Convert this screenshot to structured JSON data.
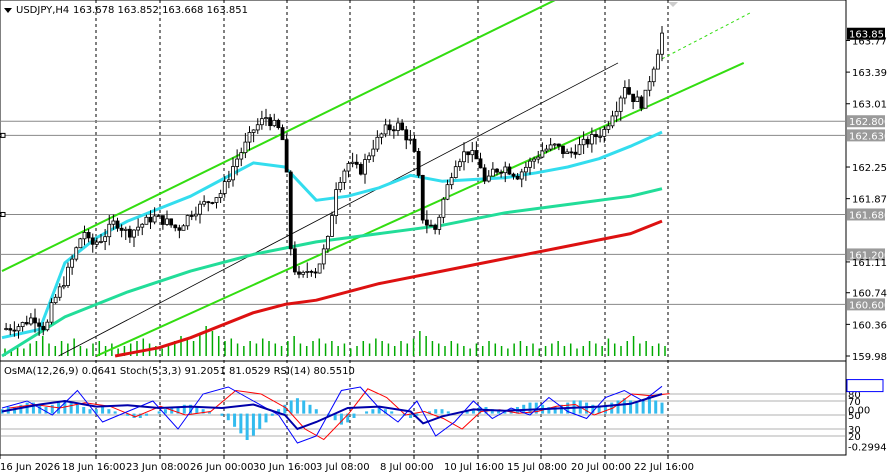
{
  "header": {
    "symbol": "USDJPY,H4",
    "ohlc": "163.678 163.852 163.668 163.851"
  },
  "osc_header": {
    "text": "OsMA(12,26,9) 0.0641 Stoch(5,3,3) 91.2051 81.0529 RSI(14) 80.5510"
  },
  "colors": {
    "background": "#ffffff",
    "ma_fast": "#33ddee",
    "ma_mid": "#22dd99",
    "ma_slow": "#dd1111",
    "channel": "#33dd11",
    "candles": "#000000",
    "volume": "#00aa00",
    "osma": "#33bbee",
    "stoch_main": "#0000ff",
    "stoch_signal": "#ff0000",
    "rsi": "#0000aa",
    "price_tag": "#000000"
  },
  "chart_data": [
    {
      "type": "candlestick",
      "symbol": "USDJPY",
      "timeframe": "H4",
      "ylim": [
        159.98,
        164.04
      ],
      "price_ticks": [
        "163.770",
        "163.390",
        "163.010",
        "162.250",
        "161.870",
        "161.110",
        "160.740",
        "160.360",
        "159.980"
      ],
      "price_ticks_values": [
        163.77,
        163.39,
        163.01,
        162.25,
        161.87,
        161.11,
        160.74,
        160.36,
        159.98
      ],
      "current_price": "163.851",
      "levels": [
        {
          "label": "162.800",
          "value": 162.8
        },
        {
          "label": "162.630",
          "value": 162.63
        },
        {
          "label": "161.680",
          "value": 161.68
        },
        {
          "label": "161.200",
          "value": 161.2
        },
        {
          "label": "160.600",
          "value": 160.6
        }
      ],
      "x_labels": [
        "16 Jun 2026",
        "18 Jun 16:00",
        "23 Jun 08:00",
        "26 Jun 00:00",
        "30 Jun 16:00",
        "3 Jul 08:00",
        "8 Jul 00:00",
        "10 Jul 16:00",
        "15 Jul 08:00",
        "20 Jul 00:00",
        "22 Jul 16:00"
      ],
      "close_path": [
        [
          0,
          160.3
        ],
        [
          3,
          160.35
        ],
        [
          5,
          160.45
        ],
        [
          7,
          160.3
        ],
        [
          8,
          160.6
        ],
        [
          10,
          160.9
        ],
        [
          12,
          161.3
        ],
        [
          13,
          161.5
        ],
        [
          14,
          161.3
        ],
        [
          16,
          161.4
        ],
        [
          18,
          161.6
        ],
        [
          20,
          161.45
        ],
        [
          22,
          161.55
        ],
        [
          24,
          161.65
        ],
        [
          26,
          161.6
        ],
        [
          28,
          161.5
        ],
        [
          30,
          161.7
        ],
        [
          32,
          161.8
        ],
        [
          34,
          161.9
        ],
        [
          35,
          161.95
        ],
        [
          37,
          162.3
        ],
        [
          39,
          162.55
        ],
        [
          40,
          162.7
        ],
        [
          42,
          162.85
        ],
        [
          44,
          162.7
        ],
        [
          45,
          162.5
        ],
        [
          46,
          161.2
        ],
        [
          47,
          160.9
        ],
        [
          48,
          160.95
        ],
        [
          49,
          161.05
        ],
        [
          50,
          161.0
        ],
        [
          51,
          161.2
        ],
        [
          52,
          161.4
        ],
        [
          53,
          162.0
        ],
        [
          55,
          162.3
        ],
        [
          57,
          162.2
        ],
        [
          59,
          162.5
        ],
        [
          61,
          162.7
        ],
        [
          63,
          162.75
        ],
        [
          65,
          162.55
        ],
        [
          66,
          162.3
        ],
        [
          67,
          161.6
        ],
        [
          69,
          161.5
        ],
        [
          70,
          161.8
        ],
        [
          72,
          162.3
        ],
        [
          74,
          162.45
        ],
        [
          76,
          162.3
        ],
        [
          77,
          162.0
        ],
        [
          78,
          162.2
        ],
        [
          80,
          162.25
        ],
        [
          82,
          162.15
        ],
        [
          84,
          162.3
        ],
        [
          86,
          162.45
        ],
        [
          88,
          162.5
        ],
        [
          90,
          162.4
        ],
        [
          92,
          162.5
        ],
        [
          94,
          162.6
        ],
        [
          96,
          162.7
        ],
        [
          97,
          162.9
        ],
        [
          98,
          163.0
        ],
        [
          99,
          163.25
        ],
        [
          100,
          163.1
        ],
        [
          101,
          163.05
        ],
        [
          102,
          163.0
        ],
        [
          103,
          163.3
        ],
        [
          104,
          163.55
        ],
        [
          105,
          163.851
        ]
      ],
      "ma_fast": [
        [
          0,
          160.2
        ],
        [
          6,
          160.3
        ],
        [
          10,
          161.1
        ],
        [
          15,
          161.4
        ],
        [
          20,
          161.6
        ],
        [
          25,
          161.75
        ],
        [
          30,
          161.9
        ],
        [
          35,
          162.1
        ],
        [
          40,
          162.3
        ],
        [
          45,
          162.25
        ],
        [
          50,
          161.85
        ],
        [
          55,
          161.9
        ],
        [
          60,
          162.0
        ],
        [
          65,
          162.15
        ],
        [
          70,
          162.08
        ],
        [
          75,
          162.1
        ],
        [
          80,
          162.12
        ],
        [
          85,
          162.18
        ],
        [
          90,
          162.25
        ],
        [
          95,
          162.35
        ],
        [
          100,
          162.5
        ],
        [
          105,
          162.67
        ]
      ],
      "ma_mid": [
        [
          0,
          159.98
        ],
        [
          10,
          160.45
        ],
        [
          20,
          160.75
        ],
        [
          30,
          161.0
        ],
        [
          40,
          161.2
        ],
        [
          50,
          161.35
        ],
        [
          60,
          161.45
        ],
        [
          70,
          161.55
        ],
        [
          80,
          161.7
        ],
        [
          90,
          161.8
        ],
        [
          100,
          161.9
        ],
        [
          105,
          161.99
        ]
      ],
      "ma_slow": [
        [
          18,
          159.98
        ],
        [
          25,
          160.08
        ],
        [
          30,
          160.2
        ],
        [
          40,
          160.5
        ],
        [
          45,
          160.6
        ],
        [
          50,
          160.65
        ],
        [
          60,
          160.85
        ],
        [
          70,
          161.0
        ],
        [
          80,
          161.15
        ],
        [
          90,
          161.3
        ],
        [
          100,
          161.45
        ],
        [
          105,
          161.6
        ]
      ],
      "channel_upper": [
        [
          0,
          161.0
        ],
        [
          100,
          164.7
        ]
      ],
      "channel_lower": [
        [
          15,
          159.98
        ],
        [
          118,
          163.5
        ]
      ],
      "channel_mid": [
        [
          9,
          159.98
        ],
        [
          98,
          163.5
        ]
      ],
      "volume": [
        3,
        2,
        4,
        3,
        5,
        6,
        8,
        5,
        4,
        6,
        5,
        7,
        4,
        3,
        5,
        6,
        4,
        5,
        3,
        4,
        5,
        6,
        7,
        5,
        4,
        3,
        5,
        6,
        8,
        7,
        6,
        9,
        12,
        10,
        8,
        6,
        7,
        5,
        4,
        6,
        5,
        7,
        6,
        5,
        4,
        6,
        8,
        5,
        4,
        6,
        7,
        5,
        6,
        4,
        5,
        3,
        4,
        6,
        5,
        7,
        6,
        5,
        4,
        6,
        5,
        7,
        10,
        8,
        6,
        5,
        4,
        6,
        5,
        4,
        3,
        5,
        4,
        6,
        5,
        4,
        3,
        5,
        6,
        4,
        5,
        3,
        4,
        5,
        6,
        4,
        5,
        3,
        4,
        6,
        5,
        4,
        7,
        5,
        4,
        6,
        8,
        5,
        6,
        4,
        5,
        4
      ]
    },
    {
      "type": "oscillator",
      "indicators": [
        "OsMA(12,26,9)",
        "Stoch(5,3,3)",
        "RSI(14)"
      ],
      "values": {
        "osma": 0.0641,
        "stoch_main": 91.2051,
        "stoch_signal": 81.0529,
        "rsi": 80.551
      },
      "ylim": [
        0,
        100
      ],
      "ticks": [
        "80",
        "70",
        "50",
        "30",
        "20",
        "-0.29944"
      ],
      "ticks_values": [
        80,
        70,
        50,
        30,
        20,
        5
      ],
      "ticks_small": [
        "0.00",
        "-0.29944"
      ],
      "stoch": [
        [
          0,
          60
        ],
        [
          4,
          70
        ],
        [
          8,
          50
        ],
        [
          12,
          85
        ],
        [
          16,
          40
        ],
        [
          20,
          55
        ],
        [
          24,
          70
        ],
        [
          28,
          30
        ],
        [
          32,
          80
        ],
        [
          36,
          90
        ],
        [
          40,
          70
        ],
        [
          44,
          50
        ],
        [
          47,
          10
        ],
        [
          50,
          20
        ],
        [
          54,
          85
        ],
        [
          57,
          90
        ],
        [
          60,
          60
        ],
        [
          63,
          40
        ],
        [
          66,
          70
        ],
        [
          69,
          20
        ],
        [
          72,
          40
        ],
        [
          75,
          70
        ],
        [
          78,
          45
        ],
        [
          81,
          60
        ],
        [
          84,
          50
        ],
        [
          87,
          75
        ],
        [
          90,
          55
        ],
        [
          93,
          45
        ],
        [
          96,
          75
        ],
        [
          99,
          85
        ],
        [
          102,
          70
        ],
        [
          105,
          91
        ]
      ],
      "rsi": [
        [
          0,
          55
        ],
        [
          6,
          65
        ],
        [
          10,
          70
        ],
        [
          15,
          62
        ],
        [
          20,
          64
        ],
        [
          25,
          60
        ],
        [
          30,
          62
        ],
        [
          35,
          60
        ],
        [
          40,
          65
        ],
        [
          45,
          50
        ],
        [
          47,
          30
        ],
        [
          50,
          40
        ],
        [
          55,
          60
        ],
        [
          60,
          62
        ],
        [
          65,
          55
        ],
        [
          67,
          38
        ],
        [
          70,
          48
        ],
        [
          75,
          58
        ],
        [
          80,
          56
        ],
        [
          85,
          58
        ],
        [
          90,
          60
        ],
        [
          95,
          62
        ],
        [
          100,
          66
        ],
        [
          105,
          80
        ]
      ],
      "osma": [
        2,
        3,
        3,
        4,
        5,
        5,
        4,
        3,
        4,
        5,
        6,
        5,
        4,
        3,
        2,
        2,
        3,
        2,
        1,
        0,
        -1,
        -2,
        -2,
        -1,
        0,
        1,
        2,
        3,
        3,
        4,
        4,
        3,
        2,
        1,
        0,
        -1,
        -3,
        -6,
        -9,
        -12,
        -10,
        -7,
        -4,
        -1,
        2,
        4,
        6,
        7,
        6,
        4,
        2,
        0,
        -1,
        -3,
        -5,
        -4,
        -2,
        0,
        1,
        2,
        3,
        2,
        1,
        0,
        -1,
        -2,
        -1,
        0,
        1,
        2,
        2,
        1,
        0,
        0,
        1,
        2,
        3,
        3,
        2,
        1,
        1,
        2,
        3,
        4,
        5,
        5,
        4,
        3,
        3,
        4,
        5,
        6,
        6,
        5,
        4,
        3,
        4,
        5,
        6,
        7,
        6,
        5,
        6,
        7,
        6,
        5
      ]
    }
  ]
}
